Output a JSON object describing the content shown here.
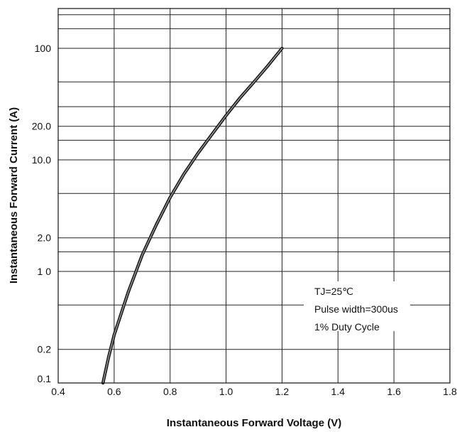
{
  "chart_data": {
    "type": "line",
    "title": "",
    "xlabel": "Instantaneous Forward Voltage (V)",
    "ylabel": "Instantaneous Forward Current (A)",
    "x_scale": "linear",
    "y_scale": "log",
    "xlim": [
      0.4,
      1.8
    ],
    "ylim": [
      0.1,
      400
    ],
    "x_ticks": [
      0.4,
      0.6,
      0.8,
      1.0,
      1.2,
      1.4,
      1.6,
      1.8
    ],
    "x_tick_labels": [
      "0.4",
      "0.6",
      "0.8",
      "1.0",
      "1.2",
      "1.4",
      "1.6",
      "1.8"
    ],
    "y_ticks": [
      0.1,
      0.2,
      1,
      2,
      10,
      20,
      100
    ],
    "y_tick_labels": [
      "0.1",
      "0.2",
      "1 0",
      "2.0",
      "10.0",
      "20.0",
      "100"
    ],
    "grid": true,
    "annotations": [
      "TJ=25℃",
      "Pulse width=300us",
      "1% Duty Cycle"
    ],
    "series": [
      {
        "color": "#222222",
        "points": [
          {
            "x": 0.56,
            "y": 0.1
          },
          {
            "x": 0.58,
            "y": 0.17
          },
          {
            "x": 0.6,
            "y": 0.27
          },
          {
            "x": 0.65,
            "y": 0.65
          },
          {
            "x": 0.7,
            "y": 1.4
          },
          {
            "x": 0.75,
            "y": 2.6
          },
          {
            "x": 0.8,
            "y": 4.6
          },
          {
            "x": 0.85,
            "y": 7.5
          },
          {
            "x": 0.9,
            "y": 11.5
          },
          {
            "x": 0.95,
            "y": 17
          },
          {
            "x": 1.0,
            "y": 25
          },
          {
            "x": 1.05,
            "y": 36
          },
          {
            "x": 1.1,
            "y": 50
          },
          {
            "x": 1.15,
            "y": 70
          },
          {
            "x": 1.2,
            "y": 100
          }
        ]
      }
    ]
  }
}
